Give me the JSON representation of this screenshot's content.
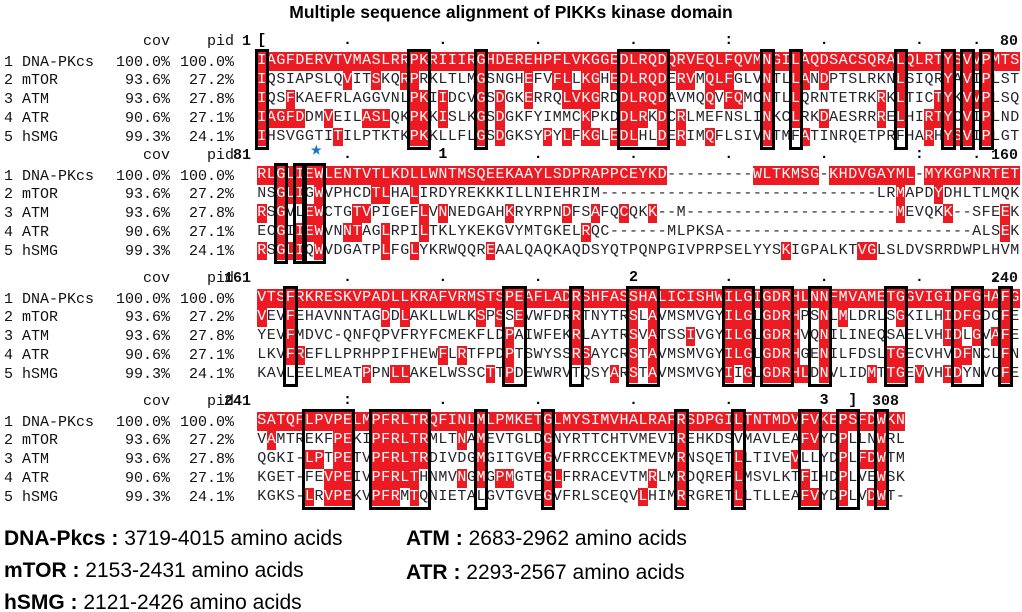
{
  "title": "Multiple sequence alignment of PIKKs kinase domain",
  "colors": {
    "highlight_red": "#ec1b23",
    "sequence_text": "#23232b",
    "highlight_text": "#ffffff",
    "box_border": "#000000",
    "star_blue": "#1c77c3"
  },
  "column_headers": {
    "cov": "cov",
    "pid": "pid"
  },
  "row_headers": [
    {
      "num": "1",
      "name": "DNA-PKcs",
      "cov": "100.0%",
      "pid": "100.0%"
    },
    {
      "num": "2",
      "name": "mTOR",
      "cov": "93.6%",
      "pid": "27.2%"
    },
    {
      "num": "3",
      "name": "ATM",
      "cov": "93.6%",
      "pid": "27.8%"
    },
    {
      "num": "4",
      "name": "ATR",
      "cov": "90.6%",
      "pid": "27.1%"
    },
    {
      "num": "5",
      "name": "hSMG",
      "cov": "99.3%",
      "pid": "24.1%"
    }
  ],
  "blocks": [
    {
      "start_label": "1",
      "end_label": "80",
      "star_col": null,
      "ruler_marks": [
        {
          "c": 1,
          "m": "["
        },
        {
          "c": 10,
          "m": "."
        },
        {
          "c": 20,
          "m": "."
        },
        {
          "c": 30,
          "m": "."
        },
        {
          "c": 40,
          "m": "."
        },
        {
          "c": 50,
          "m": ":"
        },
        {
          "c": 60,
          "m": "."
        },
        {
          "c": 70,
          "m": "."
        },
        {
          "c": 76,
          "m": "."
        }
      ],
      "sequences": [
        "IAGFDERVTVMASLRRPKRIIIRGHDEREHPFLVKGGEDLRQDQRVEQLFQVMNGILAQDSACSQRALQLRTYSVVPMTS",
        "IQSIAPSLQVITSKQRPRKLTLMGSNGHEFVFLLKGHEDLRQDERVMQLFGLVNTLLANDPTSLRKNLSIQRYAVIPLST",
        "IQSFKAEFRLAGGVNLPKIIDCVGSDGKERRQLVKGRDDLRQDAVMQQVFQMCNTLLQRNTETRKRKLTICTYKVVPLSQ",
        "IAGFDDMVEILASLQKPKKISLKGSDGKFYIMMCKPKDDLRKDCRLMEFNSLINKCLRKDAESRRRELHIRTYCVIPLND",
        "IHSVGGTITILPTKTKPKKLLFLGSDGKSYPYLFKGLEDLHLDERIMQFLSIVNTMFATINRQETPRFHARHYSVIPLGT"
      ],
      "boxes": [
        [
          1,
          1
        ],
        [
          17,
          18
        ],
        [
          24,
          24
        ],
        [
          39,
          43
        ],
        [
          54,
          54
        ],
        [
          57,
          57
        ],
        [
          68,
          68
        ],
        [
          73,
          73
        ],
        [
          75,
          75
        ],
        [
          77,
          77
        ]
      ]
    },
    {
      "start_label": "81",
      "end_label": "160",
      "star_col": 7,
      "ruler_marks": [
        {
          "c": 10,
          "m": "."
        },
        {
          "c": 20,
          "m": "1"
        },
        {
          "c": 30,
          "m": "."
        },
        {
          "c": 40,
          "m": "."
        },
        {
          "c": 50,
          "m": "."
        },
        {
          "c": 60,
          "m": "."
        },
        {
          "c": 70,
          "m": ":"
        },
        {
          "c": 76,
          "m": "."
        }
      ],
      "sequences": [
        "RLGLIEWLENTVTLKDLLWNTMSQEEKAAYLSDPRAPPCEYKD---------WLTKMSG-KHDVGAYML-MYKGPNRTET",
        "NSGLIGWVPHCDTLHALIRDYREKKKILLNIEHRIM-----------------------------LRMAPDYDHLTLMQK",
        "RSGVLEWCTGTVPIGEFLVNNEDGAHKRYRPNDFSAFQCQKK--M----------------------MEVQKK--SFEEK",
        "ECGIIEWVNNTAGLRPILTKLYKEKGVYMTGKELRQC------MLPKSA--------------------------ALSEK",
        "RSGLIQWVDGATPLFGLYKRWQQREAALQAQKAQDSYQTPQNPGIVPRPSELYYSKIGPALKTVGLSLDVSRRDWPLHVM"
      ],
      "boxes": [
        [
          3,
          3
        ],
        [
          5,
          5
        ],
        [
          6,
          7
        ]
      ]
    },
    {
      "start_label": "161",
      "end_label": "240",
      "star_col": null,
      "ruler_marks": [
        {
          "c": 10,
          "m": "."
        },
        {
          "c": 20,
          "m": "."
        },
        {
          "c": 30,
          "m": "."
        },
        {
          "c": 40,
          "m": "2"
        },
        {
          "c": 50,
          "m": "."
        },
        {
          "c": 60,
          "m": "."
        },
        {
          "c": 70,
          "m": "."
        },
        {
          "c": 78,
          "m": "."
        }
      ],
      "sequences": [
        "VTSFRKRESKVPADLLKRAFVRMSTSPEAFLADRSHFASSHALICISHWILGIGDRHLNNFMVAMETGGVIGIDFGHAFG",
        "VEVFEHAVNNTAGDDLAKLLWLKSPSSEVWFDRRTNYTRSLAVMSMVGYILGLGDRHPSNLMLDRLSGKILHIDFGDCFE",
        "YEVFMDVC-QNFQPVFRYFCMEKFLDPAIWFEKRLAYTRSVATSSIVGYILGLGDRHVQNILINEQSAELVHIDLGVAFE",
        "LKVFREFLLPRHPPIFHEWFLRTFPDPTSWYSSRSAYCRSTAVMSMVGYILGLGDRHGENILFDSLTGECVHVDFNCLFN",
        "KAVLEELMEATPPNLLAKELWSSCTTPDEWWRVTQSYARSTAVMSMVGYIIGLGDRHLDNVLIDMTTGEVVHIDYNVCFE"
      ],
      "boxes": [
        [
          4,
          4
        ],
        [
          27,
          28
        ],
        [
          34,
          34
        ],
        [
          40,
          42
        ],
        [
          50,
          52
        ],
        [
          54,
          56
        ],
        [
          59,
          60
        ],
        [
          67,
          68
        ],
        [
          74,
          76
        ],
        [
          79,
          79
        ]
      ]
    },
    {
      "start_label": "241",
      "end_label": "308",
      "star_col": null,
      "ruler_marks": [
        {
          "c": 10,
          "m": ":"
        },
        {
          "c": 20,
          "m": "."
        },
        {
          "c": 30,
          "m": "."
        },
        {
          "c": 40,
          "m": "."
        },
        {
          "c": 50,
          "m": "."
        },
        {
          "c": 60,
          "m": "3"
        },
        {
          "c": 63,
          "m": "]"
        }
      ],
      "sequences": [
        "SATQFLPVPELMPFRLTRQFINLMLPMKETGLMYSIMVHALRAFRSDPGILTNTMDVFVKEPSFDWKN",
        "VAMTREKFPEKIPFRLTRMLTNAMEVTGLDGNYRTTCHTVMEVIREHKDSVMAVLEAFVYDPLLNWRL",
        "QGKI-LPTPETVPFRLTRDIVDGMGITGVEGVFRRCCEKTMEVMRNSQETLLTIVEVLLYDPLFDWTM",
        "KGET-FEVPEIVPFRLTHNMVNGMGPMGTEGLFRRACEVTMRLMRDQREPLMSVLKTFIHDPLVEWSK",
        "KGKS-LRVPEKVPFRMTQNIETALGVTGVEGVFRLSCEQVLHIMRRGRETLLTLLEAFVYDPLVDWT-"
      ],
      "boxes": [
        [
          6,
          10
        ],
        [
          13,
          18
        ],
        [
          24,
          24
        ],
        [
          31,
          31
        ],
        [
          45,
          45
        ],
        [
          51,
          51
        ],
        [
          58,
          59
        ],
        [
          62,
          63
        ],
        [
          66,
          66
        ]
      ]
    }
  ],
  "legend": {
    "left": [
      {
        "name": "DNA-Pkcs",
        "range": "3719-4015 amino acids"
      },
      {
        "name": "mTOR",
        "range": "2153-2431 amino acids"
      },
      {
        "name": "hSMG",
        "range": "2121-2426 amino acids"
      }
    ],
    "right": [
      {
        "name": "ATM",
        "range": "2683-2962 amino acids"
      },
      {
        "name": "ATR",
        "range": "2293-2567 amino acids"
      }
    ]
  }
}
